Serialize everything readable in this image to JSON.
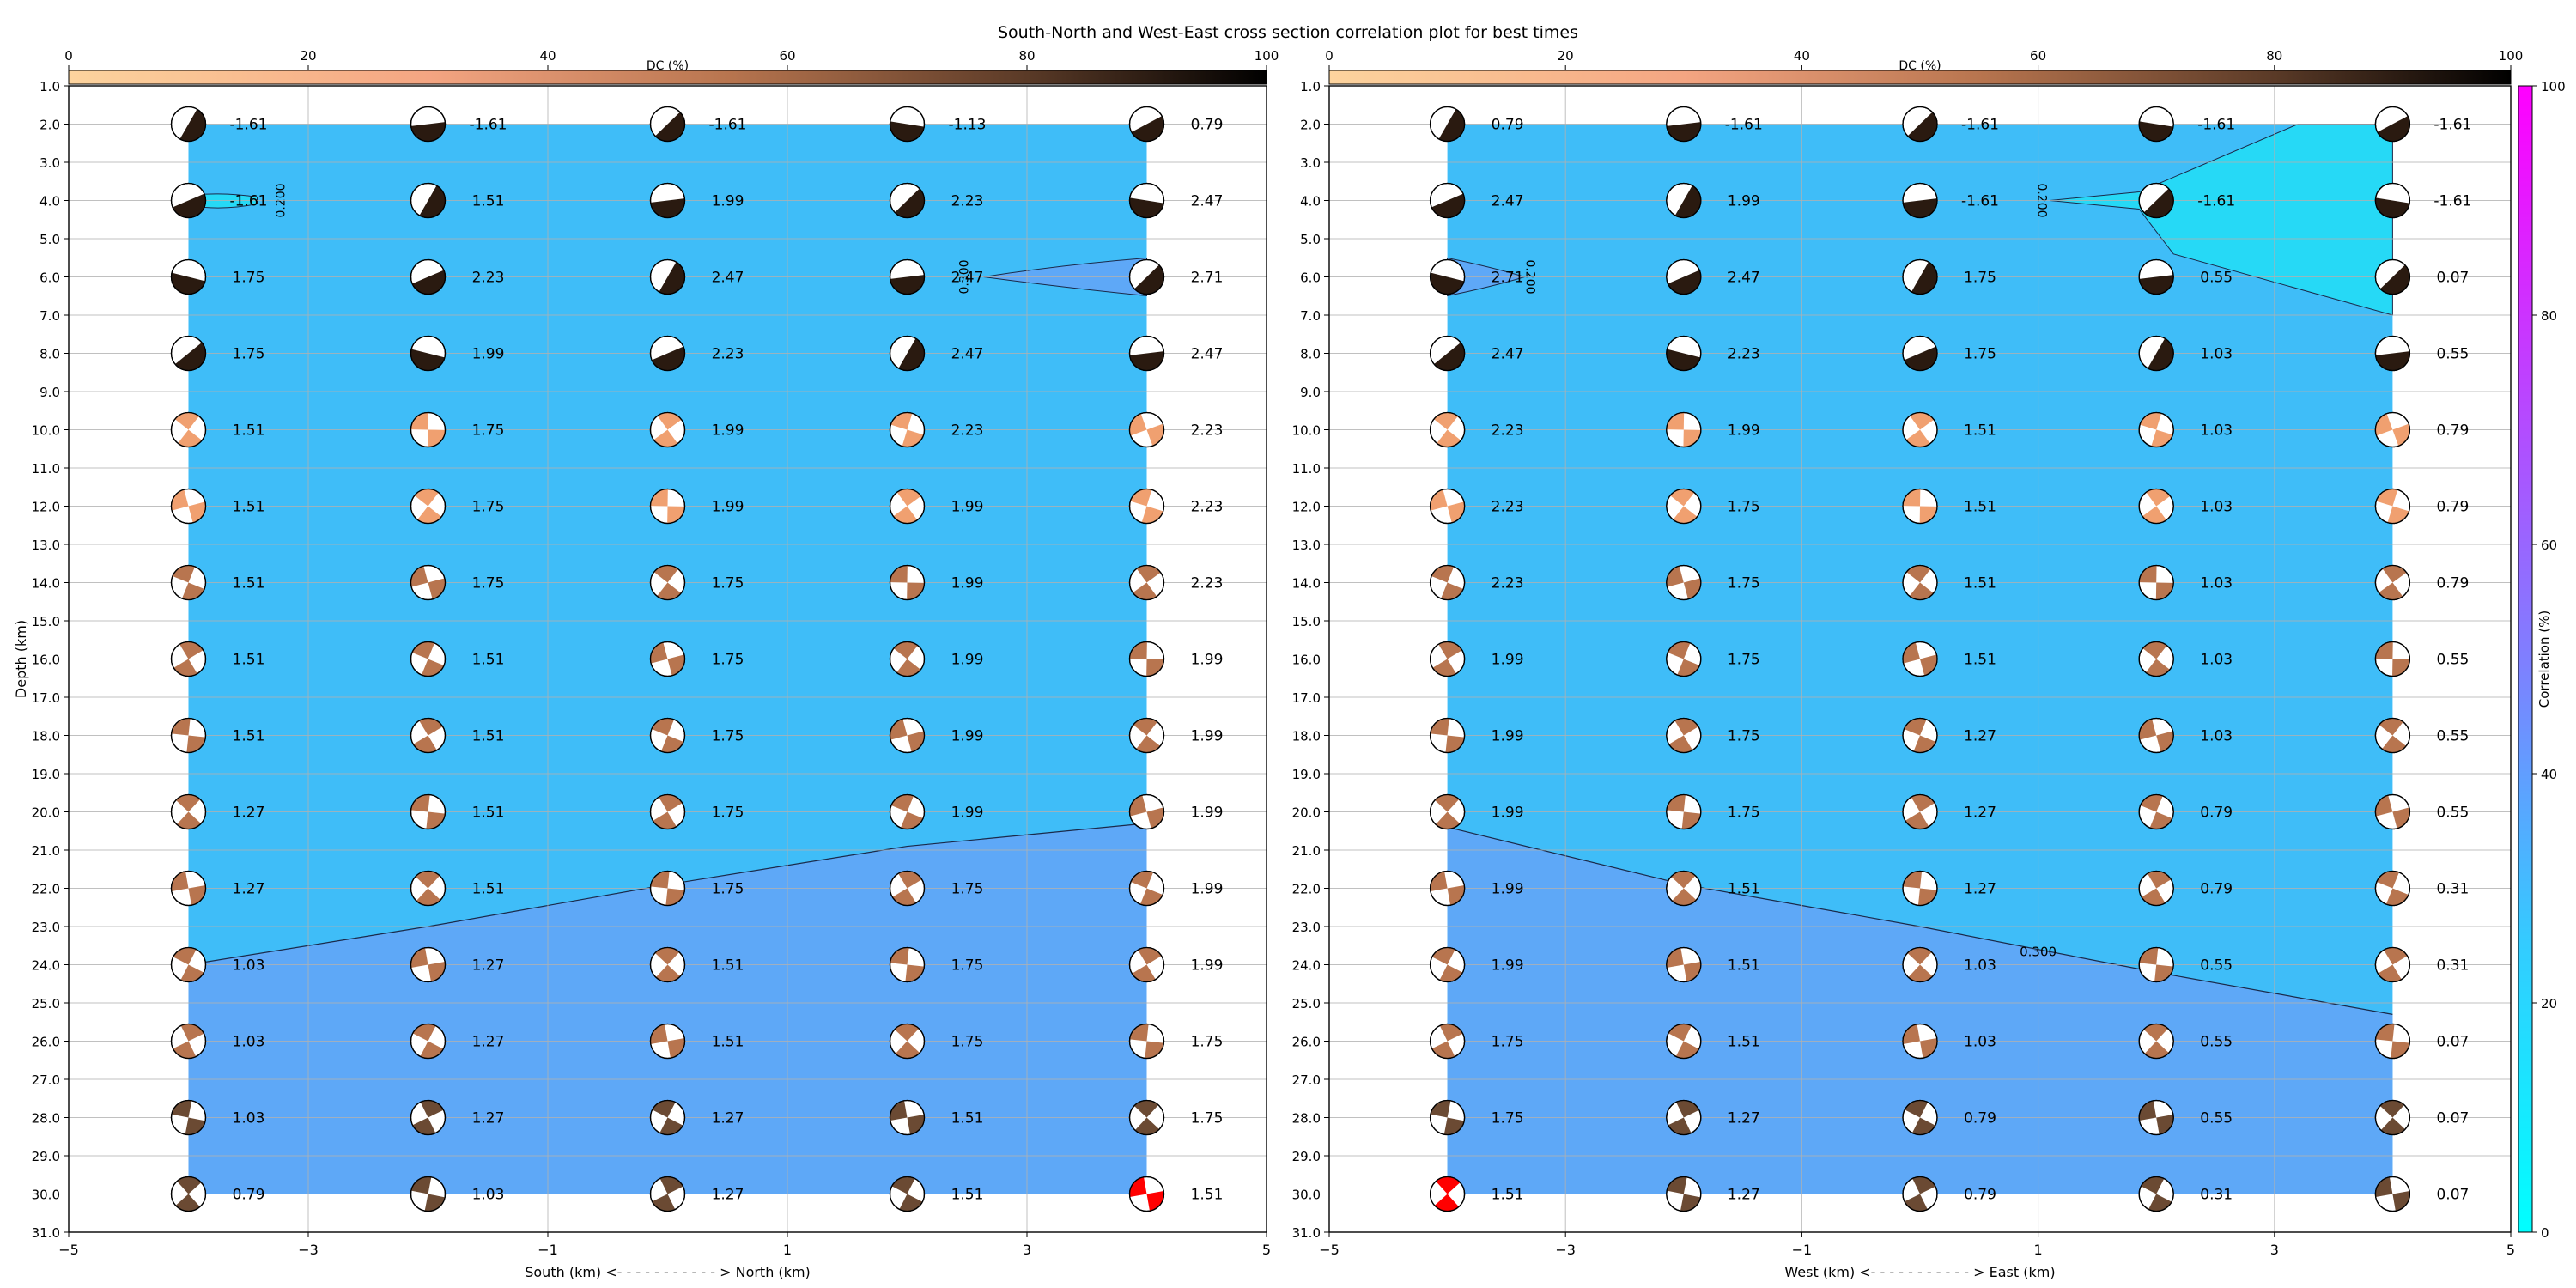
{
  "chart_data": {
    "type": "heatmap",
    "title": "South-North and West-East cross section correlation plot for best times",
    "x_positions": [
      -4,
      -2,
      0,
      2,
      4
    ],
    "depths": [
      2,
      4,
      6,
      8,
      10,
      12,
      14,
      16,
      18,
      20,
      22,
      24,
      26,
      28,
      30
    ],
    "ylim": [
      31,
      1
    ],
    "depth_ticks": [
      "1.0",
      "2.0",
      "3.0",
      "4.0",
      "5.0",
      "6.0",
      "7.0",
      "8.0",
      "9.0",
      "10.0",
      "11.0",
      "12.0",
      "13.0",
      "14.0",
      "15.0",
      "16.0",
      "17.0",
      "18.0",
      "19.0",
      "20.0",
      "21.0",
      "22.0",
      "23.0",
      "24.0",
      "25.0",
      "26.0",
      "27.0",
      "28.0",
      "29.0",
      "30.0",
      "31.0"
    ],
    "colors": {
      "level_low": "#3fbdf8",
      "level_high": "#5ea8f7",
      "level_min": "#26d9f6",
      "best_solution": "#ff0000"
    },
    "panels": [
      {
        "xlabel": "South (km) <- - - - - - - - - - - > North (km)",
        "ylabel": "Depth (km)",
        "dc_label": "DC (%)",
        "xlim": [
          -5,
          5
        ],
        "x_ticks": [
          "−5",
          "−3",
          "−1",
          "1",
          "3",
          "5"
        ],
        "dc_ticks": [
          "0",
          "20",
          "40",
          "60",
          "80",
          "100"
        ],
        "contours": [
          {
            "label": "0.300",
            "depth_at_x": [
              24.0,
              23.0,
              21.9,
              20.9,
              20.3
            ]
          },
          {
            "label": "0.200"
          },
          {
            "label": "0.300"
          }
        ],
        "values": [
          [
            "-1.61",
            "-1.61",
            "-1.61",
            "-1.13",
            "0.79"
          ],
          [
            "-1.61",
            "1.51",
            "1.99",
            "2.23",
            "2.47"
          ],
          [
            "1.75",
            "2.23",
            "2.47",
            "2.47",
            "2.71"
          ],
          [
            "1.75",
            "1.99",
            "2.23",
            "2.47",
            "2.47"
          ],
          [
            "1.51",
            "1.75",
            "1.99",
            "2.23",
            "2.23"
          ],
          [
            "1.51",
            "1.75",
            "1.99",
            "1.99",
            "2.23"
          ],
          [
            "1.51",
            "1.75",
            "1.75",
            "1.99",
            "2.23"
          ],
          [
            "1.51",
            "1.51",
            "1.75",
            "1.99",
            "1.99"
          ],
          [
            "1.51",
            "1.51",
            "1.75",
            "1.99",
            "1.99"
          ],
          [
            "1.27",
            "1.51",
            "1.75",
            "1.99",
            "1.99"
          ],
          [
            "1.27",
            "1.51",
            "1.75",
            "1.75",
            "1.99"
          ],
          [
            "1.03",
            "1.27",
            "1.51",
            "1.75",
            "1.99"
          ],
          [
            "1.03",
            "1.27",
            "1.51",
            "1.75",
            "1.75"
          ],
          [
            "1.03",
            "1.27",
            "1.27",
            "1.51",
            "1.75"
          ],
          [
            "0.79",
            "1.03",
            "1.27",
            "1.51",
            "1.51"
          ]
        ],
        "best": {
          "x": 4,
          "depth": 30
        }
      },
      {
        "xlabel": "West (km) <- - - - - - - - - - - > East (km)",
        "ylabel": "",
        "dc_label": "DC (%)",
        "xlim": [
          -5,
          5
        ],
        "x_ticks": [
          "−5",
          "−3",
          "−1",
          "1",
          "3",
          "5"
        ],
        "dc_ticks": [
          "0",
          "20",
          "40",
          "60",
          "80",
          "100"
        ],
        "contours": [
          {
            "label": "0.300",
            "depth_at_x": [
              20.4,
              21.9,
              23.0,
              24.2,
              25.3
            ]
          },
          {
            "label": "0.200"
          },
          {
            "label": "0.200"
          }
        ],
        "values": [
          [
            "0.79",
            "-1.61",
            "-1.61",
            "-1.61",
            "-1.61"
          ],
          [
            "2.47",
            "1.99",
            "-1.61",
            "-1.61",
            "-1.61"
          ],
          [
            "2.71",
            "2.47",
            "1.75",
            "0.55",
            "0.07"
          ],
          [
            "2.47",
            "2.23",
            "1.75",
            "1.03",
            "0.55"
          ],
          [
            "2.23",
            "1.99",
            "1.51",
            "1.03",
            "0.79"
          ],
          [
            "2.23",
            "1.75",
            "1.51",
            "1.03",
            "0.79"
          ],
          [
            "2.23",
            "1.75",
            "1.51",
            "1.03",
            "0.79"
          ],
          [
            "1.99",
            "1.75",
            "1.51",
            "1.03",
            "0.55"
          ],
          [
            "1.99",
            "1.75",
            "1.27",
            "1.03",
            "0.55"
          ],
          [
            "1.99",
            "1.75",
            "1.27",
            "0.79",
            "0.55"
          ],
          [
            "1.99",
            "1.51",
            "1.27",
            "0.79",
            "0.31"
          ],
          [
            "1.99",
            "1.51",
            "1.03",
            "0.55",
            "0.31"
          ],
          [
            "1.75",
            "1.51",
            "1.03",
            "0.55",
            "0.07"
          ],
          [
            "1.75",
            "1.27",
            "0.79",
            "0.55",
            "0.07"
          ],
          [
            "1.51",
            "1.27",
            "0.79",
            "0.31",
            "0.07"
          ]
        ],
        "best": {
          "x": -4,
          "depth": 30
        }
      }
    ],
    "correlation_colorbar": {
      "label": "Correlation (%)",
      "ticks": [
        "0",
        "20",
        "40",
        "60",
        "80",
        "100"
      ]
    }
  }
}
